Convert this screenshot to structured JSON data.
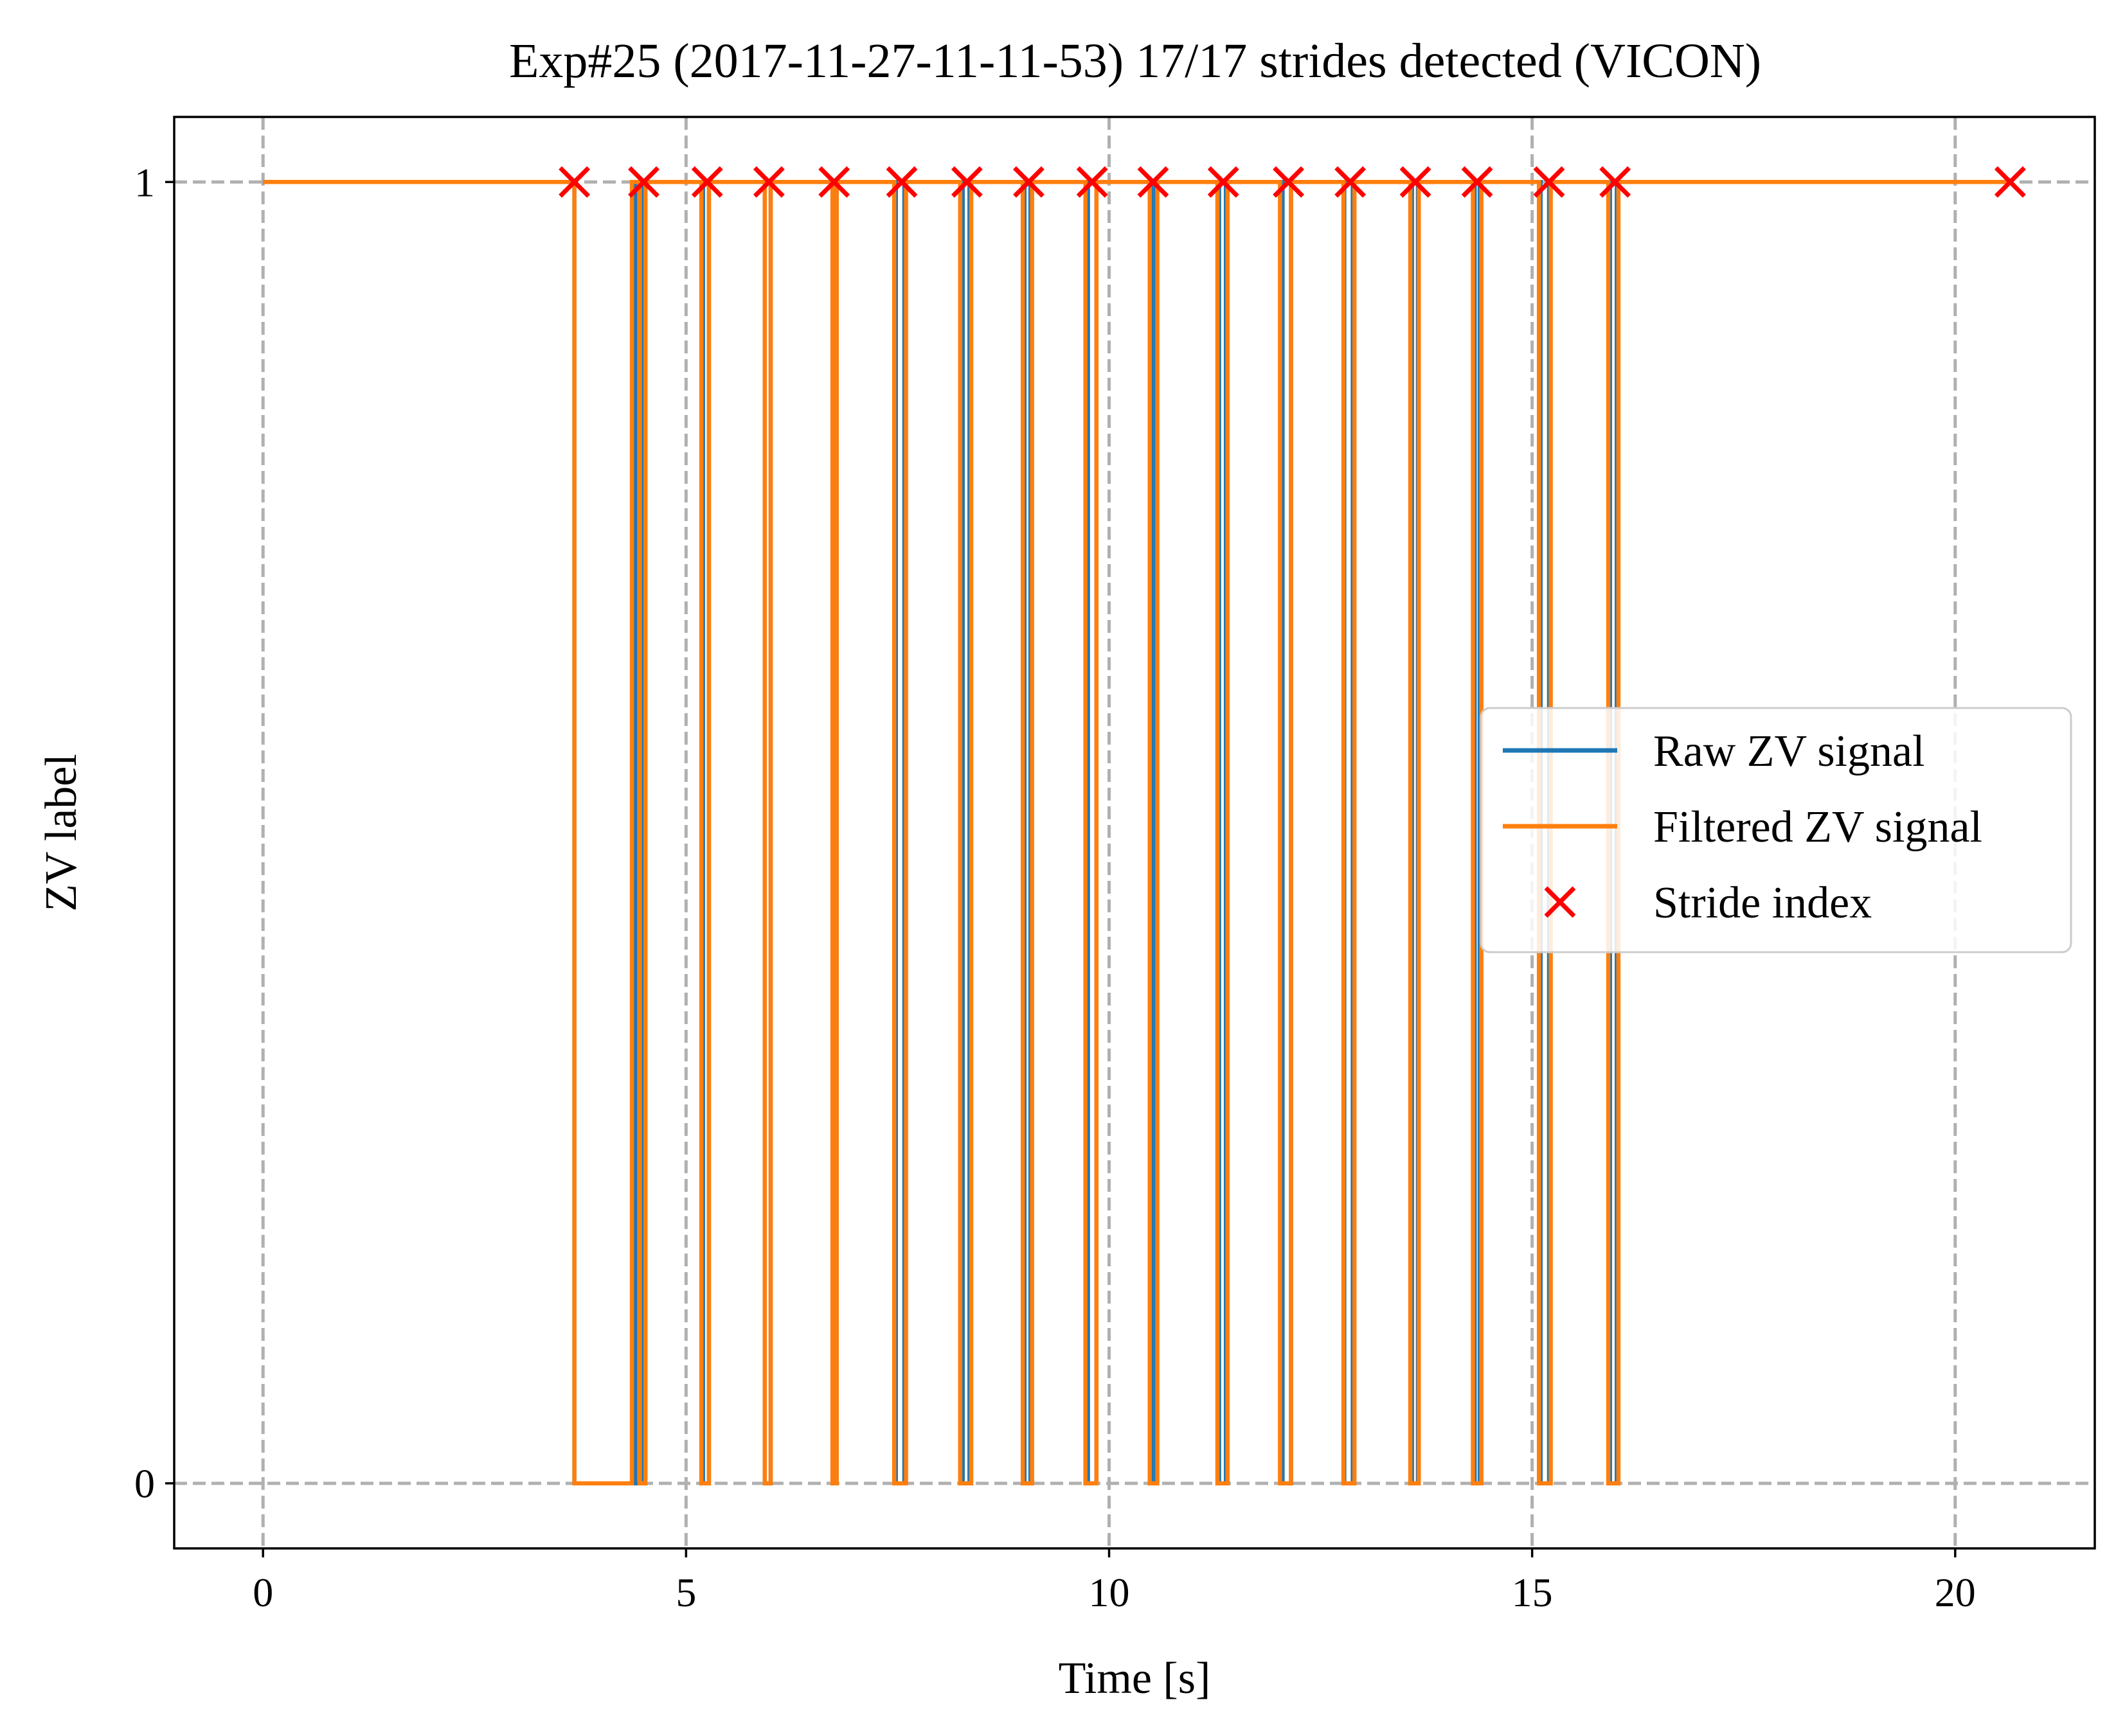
{
  "chart_data": {
    "type": "line",
    "title": "Exp#25 (2017-11-27-11-11-53) 17/17 strides detected (VICON)",
    "xlabel": "Time [s]",
    "ylabel": "ZV label",
    "xlim": [
      -1.05,
      21.65
    ],
    "ylim": [
      -0.05,
      1.05
    ],
    "x_ticks": [
      0,
      5,
      10,
      15,
      20
    ],
    "x_tick_labels": [
      "0",
      "5",
      "10",
      "15",
      "20"
    ],
    "y_ticks": [
      0,
      1
    ],
    "y_tick_labels": [
      "0",
      "1"
    ],
    "grid": true,
    "legend_position": "center-right",
    "series": [
      {
        "name": "Raw ZV signal",
        "kind": "step",
        "color": "#1f77b4",
        "x": [
          0,
          3.68,
          3.68,
          4.38,
          4.38,
          4.4,
          4.4,
          4.5,
          4.5,
          5.2,
          5.2,
          5.27,
          5.27,
          5.93,
          5.93,
          6.0,
          6.0,
          6.75,
          6.75,
          6.78,
          6.78,
          7.48,
          7.48,
          7.58,
          7.58,
          8.27,
          8.27,
          8.35,
          8.35,
          9.0,
          9.0,
          9.07,
          9.07,
          9.75,
          9.75,
          9.85,
          9.85,
          10.5,
          10.5,
          10.55,
          10.55,
          11.3,
          11.3,
          11.38,
          11.38,
          12.05,
          12.05,
          12.15,
          12.15,
          12.78,
          12.78,
          12.88,
          12.88,
          13.58,
          13.58,
          13.65,
          13.65,
          14.32,
          14.32,
          14.38,
          14.38,
          15.1,
          15.1,
          15.2,
          15.2,
          15.92,
          15.92,
          16.0,
          16.0,
          16.9,
          16.9,
          20.65
        ],
        "y": [
          1,
          1,
          0,
          0,
          1,
          1,
          0,
          0,
          1,
          1,
          0,
          0,
          1,
          1,
          0,
          0,
          1,
          1,
          0,
          0,
          1,
          1,
          0,
          0,
          1,
          1,
          0,
          0,
          1,
          1,
          0,
          0,
          1,
          1,
          0,
          0,
          1,
          1,
          0,
          0,
          1,
          1,
          0,
          0,
          1,
          1,
          0,
          0,
          1,
          1,
          0,
          0,
          1,
          1,
          0,
          0,
          1,
          1,
          0,
          0,
          1,
          1,
          0,
          0,
          1,
          1,
          0,
          0,
          1,
          1,
          1,
          1
        ]
      },
      {
        "name": "Filtered ZV signal",
        "kind": "step",
        "color": "#ff7f0e",
        "x": [
          0,
          3.68,
          3.68,
          4.36,
          4.36,
          4.45,
          4.45,
          4.52,
          4.52,
          5.18,
          5.18,
          5.27,
          5.27,
          5.93,
          5.93,
          6.0,
          6.0,
          6.73,
          6.73,
          6.78,
          6.78,
          7.46,
          7.46,
          7.6,
          7.6,
          8.24,
          8.24,
          8.37,
          8.37,
          8.98,
          8.98,
          9.09,
          9.09,
          9.72,
          9.72,
          9.85,
          9.85,
          10.48,
          10.48,
          10.57,
          10.57,
          11.28,
          11.28,
          11.4,
          11.4,
          12.02,
          12.02,
          12.15,
          12.15,
          12.77,
          12.77,
          12.9,
          12.9,
          13.56,
          13.56,
          13.66,
          13.66,
          14.3,
          14.3,
          14.4,
          14.4,
          15.08,
          15.08,
          15.22,
          15.22,
          15.9,
          15.9,
          16.02,
          16.02,
          16.83,
          16.83,
          20.65
        ],
        "y": [
          1,
          1,
          0,
          0,
          1,
          1,
          0,
          0,
          1,
          1,
          0,
          0,
          1,
          1,
          0,
          0,
          1,
          1,
          0,
          0,
          1,
          1,
          0,
          0,
          1,
          1,
          0,
          0,
          1,
          1,
          0,
          0,
          1,
          1,
          0,
          0,
          1,
          1,
          0,
          0,
          1,
          1,
          0,
          0,
          1,
          1,
          0,
          0,
          1,
          1,
          0,
          0,
          1,
          1,
          0,
          0,
          1,
          1,
          0,
          0,
          1,
          1,
          0,
          0,
          1,
          1,
          0,
          0,
          1,
          1,
          1,
          1
        ]
      },
      {
        "name": "Stride index",
        "kind": "scatter",
        "marker": "x",
        "color": "#ff0000",
        "x": [
          3.68,
          4.5,
          5.25,
          5.98,
          6.75,
          7.55,
          8.32,
          9.05,
          9.8,
          10.52,
          11.35,
          12.12,
          12.85,
          13.62,
          14.35,
          15.2,
          15.98,
          20.65
        ],
        "y": [
          1,
          1,
          1,
          1,
          1,
          1,
          1,
          1,
          1,
          1,
          1,
          1,
          1,
          1,
          1,
          1,
          1,
          1
        ]
      }
    ]
  }
}
